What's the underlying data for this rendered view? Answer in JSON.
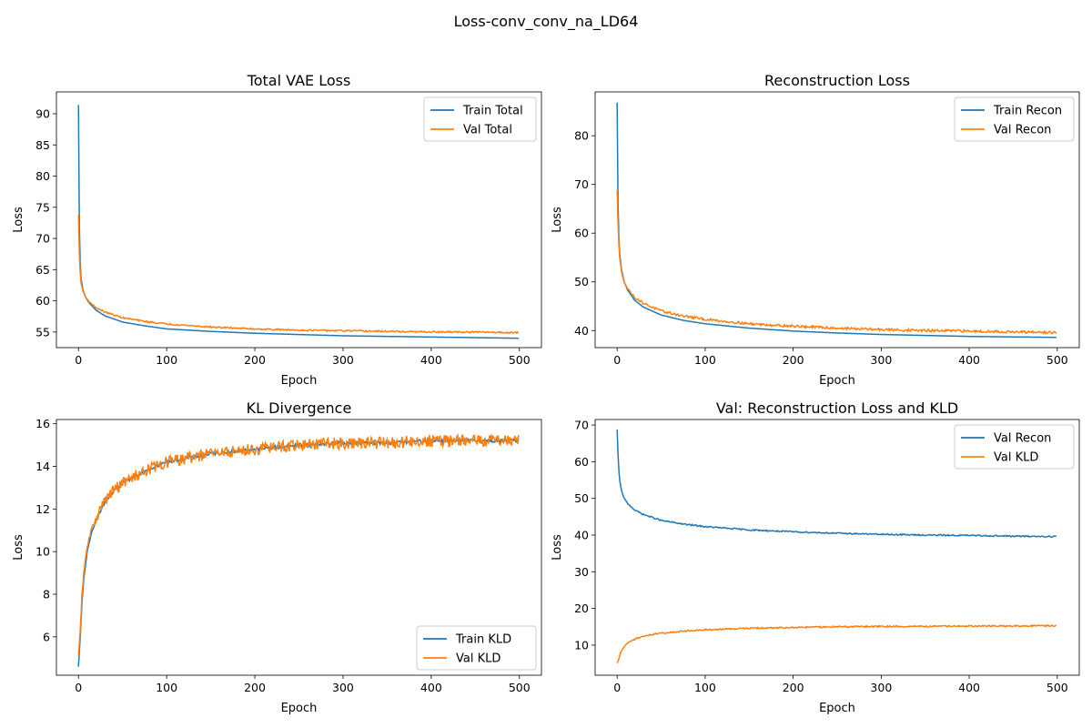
{
  "suptitle": "Loss-conv_conv_na_LD64",
  "colors": {
    "blue": "#1f77b4",
    "orange": "#ff7f0e"
  },
  "chart_data": [
    {
      "type": "line",
      "title": "Total VAE Loss",
      "xlabel": "Epoch",
      "ylabel": "Loss",
      "xlim": [
        -25,
        525
      ],
      "ylim": [
        52.5,
        93.5
      ],
      "xticks": [
        0,
        100,
        200,
        300,
        400,
        500
      ],
      "yticks": [
        55,
        60,
        65,
        70,
        75,
        80,
        85,
        90
      ],
      "legend": "top-right",
      "grid": false,
      "series": [
        {
          "name": "Train Total",
          "color": "#1f77b4",
          "x": [
            0,
            1,
            2,
            3,
            5,
            8,
            12,
            20,
            30,
            50,
            75,
            100,
            150,
            200,
            250,
            300,
            350,
            400,
            450,
            499
          ],
          "y": [
            91.4,
            72.0,
            66.0,
            63.5,
            61.8,
            60.6,
            59.7,
            58.5,
            57.6,
            56.6,
            56.0,
            55.5,
            55.1,
            54.8,
            54.6,
            54.4,
            54.3,
            54.2,
            54.1,
            54.0
          ]
        },
        {
          "name": "Val Total",
          "color": "#ff7f0e",
          "x": [
            0,
            1,
            2,
            3,
            5,
            8,
            12,
            20,
            30,
            50,
            75,
            100,
            150,
            200,
            250,
            300,
            350,
            400,
            450,
            499
          ],
          "y": [
            73.8,
            67.5,
            64.5,
            62.8,
            61.6,
            60.6,
            59.9,
            58.9,
            58.2,
            57.3,
            56.7,
            56.3,
            55.8,
            55.5,
            55.3,
            55.2,
            55.1,
            55.0,
            55.0,
            54.9
          ]
        }
      ]
    },
    {
      "type": "line",
      "title": "Reconstruction Loss",
      "xlabel": "Epoch",
      "ylabel": "Loss",
      "xlim": [
        -25,
        525
      ],
      "ylim": [
        36.5,
        89
      ],
      "xticks": [
        0,
        100,
        200,
        300,
        400,
        500
      ],
      "yticks": [
        40,
        50,
        60,
        70,
        80
      ],
      "legend": "top-right",
      "grid": false,
      "series": [
        {
          "name": "Train Recon",
          "color": "#1f77b4",
          "x": [
            0,
            1,
            2,
            3,
            5,
            8,
            12,
            20,
            30,
            50,
            75,
            100,
            150,
            200,
            250,
            300,
            350,
            400,
            450,
            499
          ],
          "y": [
            86.8,
            66.0,
            59.0,
            55.5,
            52.5,
            50.0,
            48.3,
            46.2,
            44.8,
            43.2,
            42.1,
            41.4,
            40.5,
            39.9,
            39.5,
            39.2,
            39.0,
            38.8,
            38.7,
            38.6
          ]
        },
        {
          "name": "Val Recon",
          "color": "#ff7f0e",
          "x": [
            0,
            1,
            2,
            3,
            5,
            8,
            12,
            20,
            30,
            50,
            75,
            100,
            150,
            200,
            250,
            300,
            350,
            400,
            450,
            499
          ],
          "y": [
            68.8,
            62.0,
            57.5,
            54.8,
            52.0,
            50.0,
            48.6,
            46.8,
            45.6,
            44.0,
            43.0,
            42.3,
            41.4,
            40.9,
            40.5,
            40.2,
            40.0,
            39.9,
            39.7,
            39.6
          ]
        }
      ]
    },
    {
      "type": "line",
      "title": "KL Divergence",
      "xlabel": "Epoch",
      "ylabel": "Loss",
      "xlim": [
        -25,
        525
      ],
      "ylim": [
        4.2,
        16.2
      ],
      "xticks": [
        0,
        100,
        200,
        300,
        400,
        500
      ],
      "yticks": [
        6,
        8,
        10,
        12,
        14,
        16
      ],
      "legend": "bottom-right",
      "grid": false,
      "series": [
        {
          "name": "Train KLD",
          "color": "#1f77b4",
          "x": [
            0,
            2,
            4,
            6,
            8,
            10,
            15,
            20,
            30,
            40,
            50,
            75,
            100,
            150,
            200,
            250,
            300,
            350,
            400,
            450,
            499
          ],
          "y": [
            4.6,
            6.0,
            7.6,
            8.7,
            9.4,
            10.0,
            10.9,
            11.5,
            12.3,
            12.8,
            13.2,
            13.8,
            14.2,
            14.6,
            14.8,
            15.0,
            15.1,
            15.1,
            15.2,
            15.2,
            15.2
          ]
        },
        {
          "name": "Val KLD",
          "color": "#ff7f0e",
          "x": [
            0,
            2,
            4,
            6,
            8,
            10,
            15,
            20,
            30,
            40,
            50,
            75,
            100,
            150,
            200,
            250,
            300,
            350,
            400,
            450,
            499
          ],
          "y": [
            5.1,
            6.3,
            7.9,
            8.9,
            9.6,
            10.3,
            11.0,
            11.6,
            12.4,
            12.9,
            13.2,
            13.8,
            14.2,
            14.6,
            14.8,
            15.0,
            15.1,
            15.1,
            15.2,
            15.2,
            15.3
          ]
        }
      ]
    },
    {
      "type": "line",
      "title": "Val: Reconstruction Loss and KLD",
      "xlabel": "Epoch",
      "ylabel": "Loss",
      "xlim": [
        -25,
        525
      ],
      "ylim": [
        1.8,
        71.5
      ],
      "xticks": [
        0,
        100,
        200,
        300,
        400,
        500
      ],
      "yticks": [
        10,
        20,
        30,
        40,
        50,
        60,
        70
      ],
      "legend": "top-right",
      "grid": false,
      "series": [
        {
          "name": "Val Recon",
          "color": "#1f77b4",
          "x": [
            0,
            1,
            2,
            3,
            5,
            8,
            12,
            20,
            30,
            50,
            75,
            100,
            150,
            200,
            250,
            300,
            350,
            400,
            450,
            499
          ],
          "y": [
            68.8,
            62.0,
            57.5,
            54.8,
            52.0,
            50.0,
            48.6,
            46.8,
            45.6,
            44.0,
            43.0,
            42.3,
            41.4,
            40.9,
            40.5,
            40.2,
            40.0,
            39.9,
            39.7,
            39.6
          ]
        },
        {
          "name": "Val KLD",
          "color": "#ff7f0e",
          "x": [
            0,
            2,
            4,
            6,
            8,
            10,
            15,
            20,
            30,
            40,
            50,
            75,
            100,
            150,
            200,
            250,
            300,
            350,
            400,
            450,
            499
          ],
          "y": [
            5.1,
            6.3,
            7.9,
            8.9,
            9.6,
            10.3,
            11.0,
            11.6,
            12.4,
            12.9,
            13.2,
            13.8,
            14.2,
            14.6,
            14.8,
            15.0,
            15.1,
            15.1,
            15.2,
            15.2,
            15.3
          ]
        }
      ]
    }
  ]
}
